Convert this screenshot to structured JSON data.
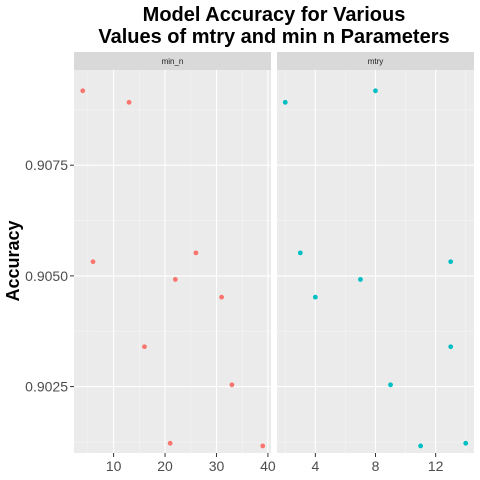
{
  "chart_data": {
    "type": "scatter",
    "title_lines": [
      "Model Accuracy for Various",
      "Values of mtry and min n Parameters"
    ],
    "xlabel": "",
    "ylabel": "Accuracy",
    "y_ticks": [
      0.9025,
      0.905,
      0.9075
    ],
    "y_tick_labels": [
      "0.9025",
      "0.9050",
      "0.9075"
    ],
    "ylim": [
      0.901,
      0.90965
    ],
    "grid": true,
    "facets": [
      {
        "strip": "min_n",
        "color": "#F8766D",
        "xlim": [
          2.3,
          40.6
        ],
        "x_ticks": [
          10,
          20,
          30,
          40
        ],
        "x_tick_labels": [
          "10",
          "20",
          "30",
          "40"
        ],
        "points": [
          {
            "x": 4,
            "y": 0.90918
          },
          {
            "x": 6,
            "y": 0.90532
          },
          {
            "x": 13,
            "y": 0.90892
          },
          {
            "x": 16,
            "y": 0.9034
          },
          {
            "x": 21,
            "y": 0.90122
          },
          {
            "x": 22,
            "y": 0.90492
          },
          {
            "x": 26,
            "y": 0.90552
          },
          {
            "x": 31,
            "y": 0.90452
          },
          {
            "x": 33,
            "y": 0.90254
          },
          {
            "x": 39,
            "y": 0.90116
          }
        ]
      },
      {
        "strip": "mtry",
        "color": "#00BFC4",
        "xlim": [
          1.45,
          14.55
        ],
        "x_ticks": [
          4,
          8,
          12
        ],
        "x_tick_labels": [
          "4",
          "8",
          "12"
        ],
        "points": [
          {
            "x": 2,
            "y": 0.90892
          },
          {
            "x": 3,
            "y": 0.90552
          },
          {
            "x": 4,
            "y": 0.90452
          },
          {
            "x": 7,
            "y": 0.90492
          },
          {
            "x": 8,
            "y": 0.90918
          },
          {
            "x": 9,
            "y": 0.90254
          },
          {
            "x": 11,
            "y": 0.90116
          },
          {
            "x": 13,
            "y": 0.90532
          },
          {
            "x": 13,
            "y": 0.9034
          },
          {
            "x": 14,
            "y": 0.90122
          }
        ]
      }
    ]
  }
}
